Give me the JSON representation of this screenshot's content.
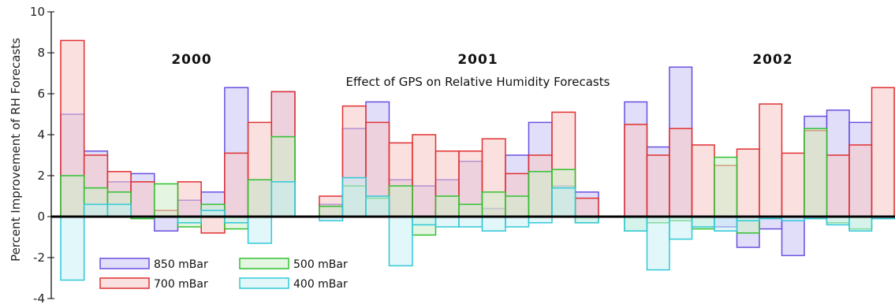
{
  "chart_data": {
    "type": "bar",
    "title": "Effect of GPS on Relative Humidity Forecasts",
    "ylabel": "Percent Improvement of RH Forecasts",
    "ylim": [
      -4,
      10
    ],
    "yticks": [
      -4,
      -2,
      0,
      2,
      4,
      6,
      8,
      10
    ],
    "grid": false,
    "legend_position": "bottom-left",
    "groups": [
      "2000",
      "2001",
      "2002"
    ],
    "series": [
      {
        "name": "850 mBar",
        "color": "#6a4fe0",
        "values": [
          [
            5.0,
            3.2,
            1.7,
            2.1,
            -0.7,
            0.8,
            1.2,
            6.3,
            1.8,
            6.1
          ],
          [
            0.6,
            4.3,
            5.6,
            1.8,
            1.5,
            1.8,
            2.7,
            0.4,
            3.0,
            4.6,
            1.5,
            1.2
          ],
          [
            5.6,
            3.4,
            7.3,
            0.0,
            -0.5,
            -1.5,
            -0.6,
            -1.9,
            4.9,
            5.2,
            4.6,
            0.0
          ]
        ]
      },
      {
        "name": "700 mBar",
        "color": "#e03030",
        "values": [
          [
            8.6,
            3.0,
            2.2,
            1.7,
            0.3,
            1.7,
            -0.8,
            3.1,
            4.6,
            6.1
          ],
          [
            1.0,
            5.4,
            4.6,
            3.6,
            4.0,
            3.2,
            3.2,
            3.8,
            2.1,
            3.0,
            5.1,
            0.9
          ],
          [
            4.5,
            3.0,
            4.3,
            3.5,
            2.5,
            3.3,
            5.5,
            3.1,
            4.2,
            3.0,
            3.5,
            6.3
          ]
        ]
      },
      {
        "name": "500 mBar",
        "color": "#30c030",
        "values": [
          [
            2.0,
            1.4,
            1.2,
            -0.1,
            1.6,
            -0.5,
            0.6,
            -0.6,
            1.8,
            3.9
          ],
          [
            0.5,
            1.5,
            0.9,
            1.5,
            -0.9,
            1.0,
            0.6,
            1.2,
            1.0,
            2.2,
            2.3,
            -0.3
          ],
          [
            -0.7,
            -0.3,
            -0.2,
            -0.6,
            2.9,
            -0.8,
            0.0,
            0.0,
            4.3,
            -0.3,
            -0.6,
            0.0
          ]
        ]
      },
      {
        "name": "400 mBar",
        "color": "#30c8d8",
        "values": [
          [
            -3.1,
            0.6,
            0.6,
            0.0,
            0.0,
            -0.3,
            0.3,
            -0.3,
            -1.3,
            1.7
          ],
          [
            -0.2,
            1.9,
            1.0,
            -2.4,
            -0.4,
            -0.5,
            -0.5,
            -0.7,
            -0.5,
            -0.3,
            1.4,
            -0.3
          ],
          [
            -0.7,
            -2.6,
            -1.1,
            -0.5,
            -0.7,
            -0.2,
            -0.1,
            -0.2,
            -0.1,
            -0.4,
            -0.7,
            -0.1
          ]
        ]
      }
    ]
  }
}
